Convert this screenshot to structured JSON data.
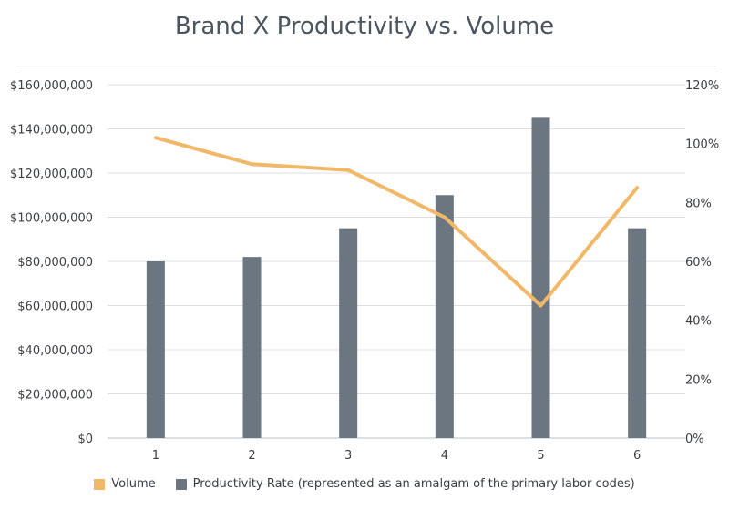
{
  "chart_data": {
    "type": "bar+line",
    "title": "Brand X Productivity vs. Volume",
    "categories": [
      "1",
      "2",
      "3",
      "4",
      "5",
      "6"
    ],
    "left_axis": {
      "ticks": [
        "$0",
        "$20,000,000",
        "$40,000,000",
        "$60,000,000",
        "$80,000,000",
        "$100,000,000",
        "$120,000,000",
        "$140,000,000",
        "$160,000,000"
      ],
      "ylim": [
        0,
        160000000
      ]
    },
    "right_axis": {
      "ticks": [
        "0%",
        "20%",
        "40%",
        "60%",
        "80%",
        "100%",
        "120%"
      ],
      "ylim": [
        0,
        120
      ]
    },
    "series": [
      {
        "name": "Productivity Rate (represented as an amalgam of the primary labor codes)",
        "kind": "bar",
        "axis": "left",
        "color": "#6b7680",
        "values": [
          80000000,
          82000000,
          95000000,
          110000000,
          145000000,
          95000000
        ]
      },
      {
        "name": "Volume",
        "kind": "line",
        "axis": "right",
        "color": "#f1b86a",
        "values": [
          102,
          93,
          91,
          75,
          45,
          85
        ]
      }
    ],
    "grid": true,
    "legend_position": "bottom"
  }
}
